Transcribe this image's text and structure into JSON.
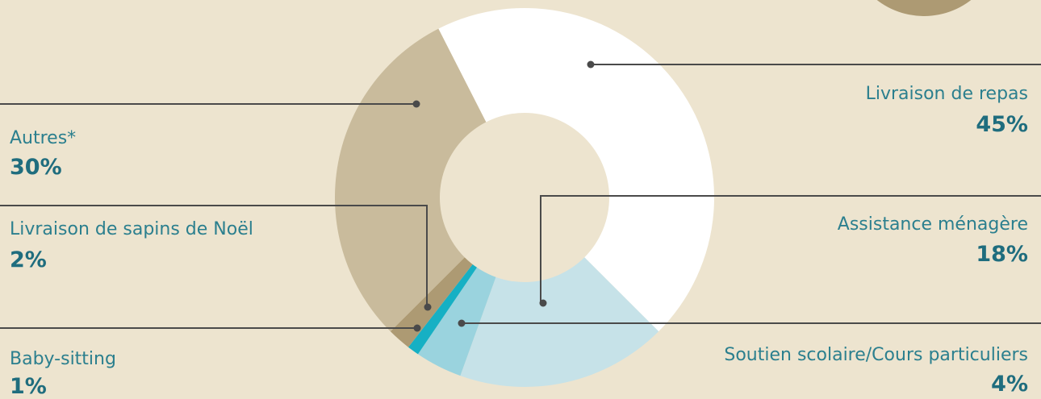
{
  "chart_data": {
    "type": "pie",
    "donut": true,
    "title": "",
    "categories": [
      "Livraison de repas",
      "Assistance ménagère",
      "Soutien scolaire/Cours particuliers",
      "Baby-sitting",
      "Livraison de sapins de Noël",
      "Autres*"
    ],
    "values": [
      45,
      18,
      4,
      1,
      2,
      30
    ],
    "value_labels": [
      "45%",
      "18%",
      "4%",
      "1%",
      "2%",
      "30%"
    ],
    "colors": [
      "#ffffff",
      "#c6e2e8",
      "#9ad3de",
      "#16b0c4",
      "#ad9a73",
      "#c9bb9c"
    ],
    "legend": "callout-labels"
  }
}
